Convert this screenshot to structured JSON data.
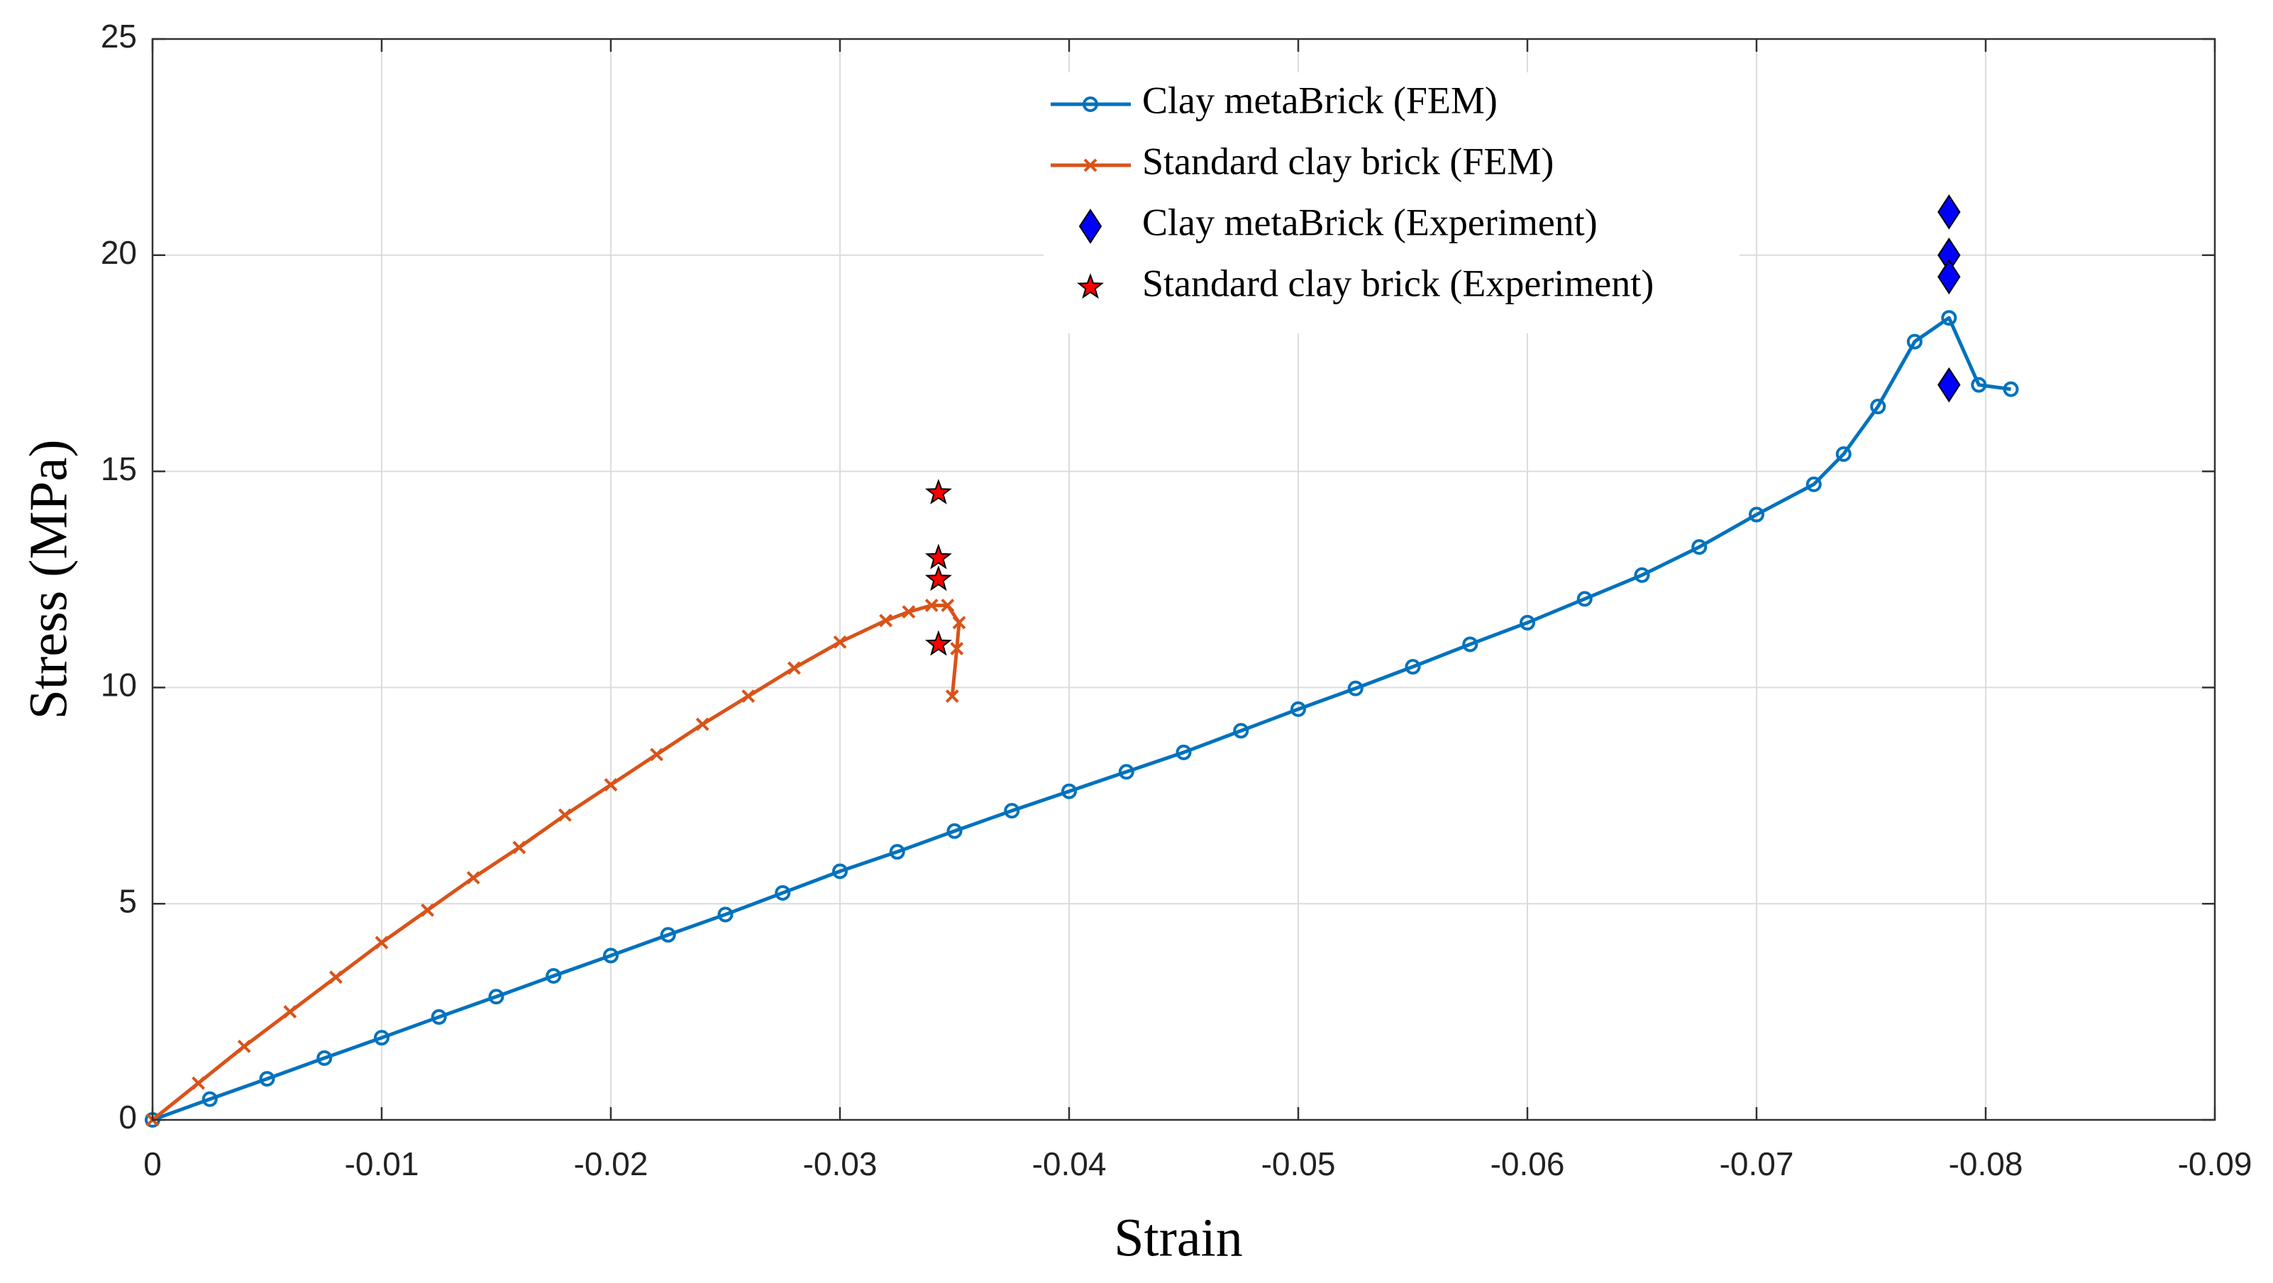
{
  "chart_data": {
    "type": "line",
    "xlabel": "Strain",
    "ylabel": "Stress (MPa)",
    "xlim": [
      0,
      -0.09
    ],
    "xticks": [
      0,
      -0.01,
      -0.02,
      -0.03,
      -0.04,
      -0.05,
      -0.06,
      -0.07,
      -0.08,
      -0.09
    ],
    "ylim": [
      0,
      25
    ],
    "yticks": [
      0,
      5,
      10,
      15,
      20,
      25
    ],
    "grid": true,
    "legend": "top",
    "series": [
      {
        "name": "Clay metaBrick (FEM)",
        "type": "line",
        "marker": "circle",
        "color": "#0072bd",
        "x": [
          0,
          -0.0025,
          -0.005,
          -0.0075,
          -0.01,
          -0.0125,
          -0.015,
          -0.0175,
          -0.02,
          -0.0225,
          -0.025,
          -0.0275,
          -0.03,
          -0.0325,
          -0.035,
          -0.0375,
          -0.04,
          -0.0425,
          -0.045,
          -0.0475,
          -0.05,
          -0.0525,
          -0.055,
          -0.0575,
          -0.06,
          -0.0625,
          -0.065,
          -0.0675,
          -0.07,
          -0.0725,
          -0.0738,
          -0.0753,
          -0.0769,
          -0.0784,
          -0.0797,
          -0.0811
        ],
        "values": [
          0,
          0.48,
          0.95,
          1.43,
          1.9,
          2.38,
          2.85,
          3.33,
          3.8,
          4.28,
          4.75,
          5.25,
          5.75,
          6.2,
          6.68,
          7.15,
          7.6,
          8.05,
          8.5,
          9.0,
          9.5,
          9.98,
          10.48,
          11.0,
          11.5,
          12.05,
          12.6,
          13.25,
          14.0,
          14.7,
          15.4,
          16.5,
          18.0,
          18.55,
          17.0,
          16.9
        ]
      },
      {
        "name": "Standard clay brick (FEM)",
        "type": "line",
        "marker": "x",
        "color": "#d95319",
        "x": [
          0,
          -0.002,
          -0.004,
          -0.006,
          -0.008,
          -0.01,
          -0.012,
          -0.014,
          -0.016,
          -0.018,
          -0.02,
          -0.022,
          -0.024,
          -0.026,
          -0.028,
          -0.03,
          -0.032,
          -0.033,
          -0.034,
          -0.0347,
          -0.0352,
          -0.0351,
          -0.0349
        ],
        "values": [
          0,
          0.85,
          1.7,
          2.5,
          3.3,
          4.1,
          4.85,
          5.6,
          6.3,
          7.05,
          7.75,
          8.45,
          9.15,
          9.8,
          10.45,
          11.05,
          11.55,
          11.75,
          11.9,
          11.9,
          11.5,
          10.9,
          9.8
        ]
      },
      {
        "name": "Clay metaBrick (Experiment)",
        "type": "scatter",
        "marker": "diamond",
        "color": "#0000ff",
        "x": [
          -0.0784,
          -0.0784,
          -0.0784,
          -0.0784
        ],
        "values": [
          21,
          20,
          19.5,
          17
        ]
      },
      {
        "name": "Standard clay brick (Experiment)",
        "type": "scatter",
        "marker": "star",
        "color": "#ff0000",
        "x": [
          -0.0343,
          -0.0343,
          -0.0343,
          -0.0343
        ],
        "values": [
          14.5,
          13,
          12.5,
          11
        ]
      }
    ]
  }
}
